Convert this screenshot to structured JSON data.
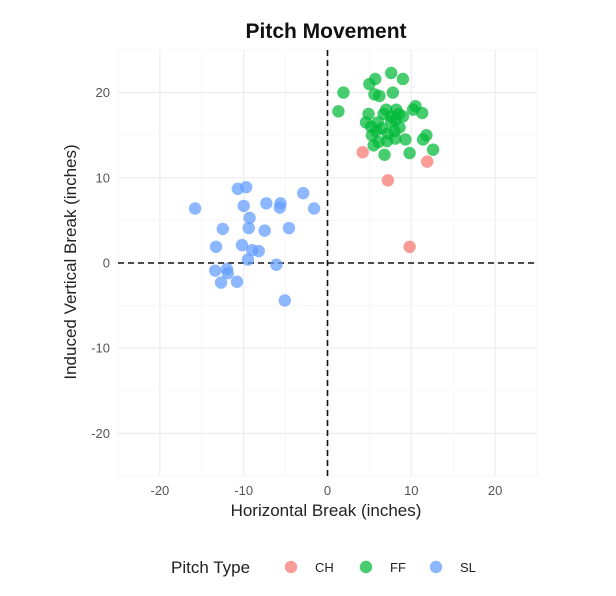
{
  "chart_data": {
    "type": "scatter",
    "title": "Pitch Movement",
    "xlabel": "Horizontal Break (inches)",
    "ylabel": "Induced Vertical Break (inches)",
    "xlim": [
      -25,
      25
    ],
    "ylim": [
      -25,
      25
    ],
    "x_ticks": [
      -20,
      -10,
      0,
      10,
      20
    ],
    "y_ticks": [
      -20,
      -10,
      0,
      10,
      20
    ],
    "grid": true,
    "reference_lines": [
      {
        "axis": "x",
        "value": 0,
        "style": "dashed"
      },
      {
        "axis": "y",
        "value": 0,
        "style": "dashed"
      }
    ],
    "legend": {
      "title": "Pitch Type",
      "position": "bottom"
    },
    "series": [
      {
        "name": "CH",
        "color": "#F8766D",
        "points": [
          [
            4.2,
            13.0
          ],
          [
            7.2,
            9.7
          ],
          [
            9.8,
            1.9
          ],
          [
            11.9,
            11.9
          ]
        ]
      },
      {
        "name": "FF",
        "color": "#00BA38",
        "points": [
          [
            1.9,
            20.0
          ],
          [
            1.3,
            17.8
          ],
          [
            5.0,
            21.0
          ],
          [
            5.7,
            21.6
          ],
          [
            7.6,
            22.3
          ],
          [
            9.0,
            21.6
          ],
          [
            7.8,
            20.0
          ],
          [
            5.6,
            19.8
          ],
          [
            6.2,
            19.6
          ],
          [
            4.9,
            17.5
          ],
          [
            4.6,
            16.5
          ],
          [
            5.2,
            16.0
          ],
          [
            5.8,
            15.5
          ],
          [
            6.0,
            16.5
          ],
          [
            6.7,
            17.5
          ],
          [
            7.0,
            18.0
          ],
          [
            7.6,
            17.2
          ],
          [
            8.1,
            16.8
          ],
          [
            8.5,
            17.5
          ],
          [
            8.2,
            18.0
          ],
          [
            9.0,
            17.2
          ],
          [
            10.2,
            18.0
          ],
          [
            10.5,
            18.4
          ],
          [
            11.3,
            17.6
          ],
          [
            6.5,
            15.8
          ],
          [
            7.2,
            15.2
          ],
          [
            8.0,
            15.5
          ],
          [
            8.6,
            15.9
          ],
          [
            5.3,
            15.0
          ],
          [
            6.1,
            14.2
          ],
          [
            7.1,
            14.3
          ],
          [
            8.1,
            14.6
          ],
          [
            9.3,
            14.5
          ],
          [
            11.4,
            14.5
          ],
          [
            11.8,
            15.0
          ],
          [
            12.6,
            13.3
          ],
          [
            5.5,
            13.8
          ],
          [
            6.8,
            12.7
          ],
          [
            9.8,
            12.9
          ],
          [
            7.6,
            16.6
          ]
        ]
      },
      {
        "name": "SL",
        "color": "#619CFF",
        "points": [
          [
            -15.8,
            6.4
          ],
          [
            -10.7,
            8.7
          ],
          [
            -9.7,
            8.9
          ],
          [
            -10.0,
            6.7
          ],
          [
            -7.3,
            7.0
          ],
          [
            -5.7,
            6.5
          ],
          [
            -5.6,
            7.0
          ],
          [
            -2.9,
            8.2
          ],
          [
            -1.6,
            6.4
          ],
          [
            -9.3,
            5.3
          ],
          [
            -9.4,
            4.1
          ],
          [
            -7.5,
            3.8
          ],
          [
            -12.5,
            4.0
          ],
          [
            -4.6,
            4.1
          ],
          [
            -13.3,
            1.9
          ],
          [
            -10.2,
            2.1
          ],
          [
            -9.0,
            1.5
          ],
          [
            -8.2,
            1.4
          ],
          [
            -9.5,
            0.4
          ],
          [
            -6.1,
            -0.2
          ],
          [
            -13.4,
            -0.9
          ],
          [
            -12.0,
            -0.7
          ],
          [
            -11.9,
            -1.2
          ],
          [
            -12.7,
            -2.3
          ],
          [
            -10.8,
            -2.2
          ],
          [
            -5.1,
            -4.4
          ]
        ]
      }
    ]
  }
}
